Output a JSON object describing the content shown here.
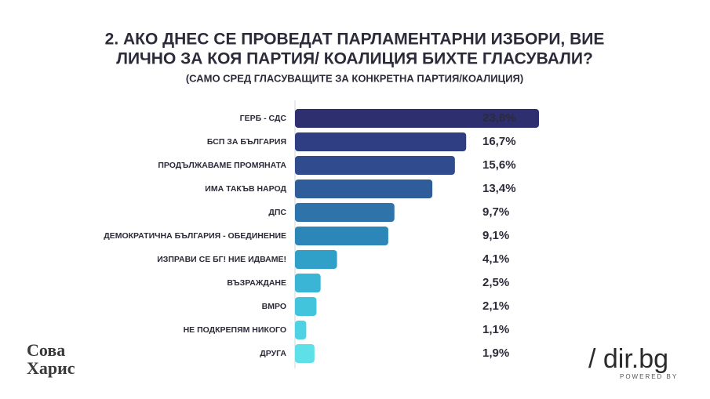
{
  "chart_data": {
    "type": "bar",
    "title": [
      "2.  АКО ДНЕС СЕ ПРОВЕДАТ ПАРЛАМЕНТАРНИ ИЗБОРИ, ВИЕ",
      "ЛИЧНО ЗА КОЯ ПАРТИЯ/ КОАЛИЦИЯ БИХТЕ ГЛАСУВАЛИ?"
    ],
    "subtitle": "(САМО СРЕД ГЛАСУВАЩИТЕ ЗА КОНКРЕТНА ПАРТИЯ/КОАЛИЦИЯ)",
    "categories": [
      "ГЕРБ - СДС",
      "БСП ЗА БЪЛГАРИЯ",
      "ПРОДЪЛЖАВАМЕ ПРОМЯНАТА",
      "ИМА ТАКЪВ НАРОД",
      "ДПС",
      "ДЕМОКРАТИЧНА БЪЛГАРИЯ - ОБЕДИНЕНИЕ",
      "ИЗПРАВИ СЕ БГ! НИЕ ИДВАМЕ!",
      "ВЪЗРАЖДАНЕ",
      "ВМРО",
      "НЕ ПОДКРЕПЯМ НИКОГО",
      "ДРУГА"
    ],
    "values": [
      23.8,
      16.7,
      15.6,
      13.4,
      9.7,
      9.1,
      4.1,
      2.5,
      2.1,
      1.1,
      1.9
    ],
    "value_labels": [
      "23,8%",
      "16,7%",
      "15,6%",
      "13,4%",
      "9,7%",
      "9,1%",
      "4,1%",
      "2,5%",
      "2,1%",
      "1,1%",
      "1,9%"
    ],
    "colors": [
      "#2d2f6f",
      "#2f3e83",
      "#304c8f",
      "#2f5d9c",
      "#2e74ab",
      "#2c87b8",
      "#30a0c9",
      "#3ab5d5",
      "#43c4dd",
      "#4fd2e3",
      "#5ee0e9"
    ]
  },
  "logos": {
    "left": [
      "Сова",
      "Харис"
    ],
    "right": "/ dir.bg",
    "right_sub": "POWERED BY"
  }
}
